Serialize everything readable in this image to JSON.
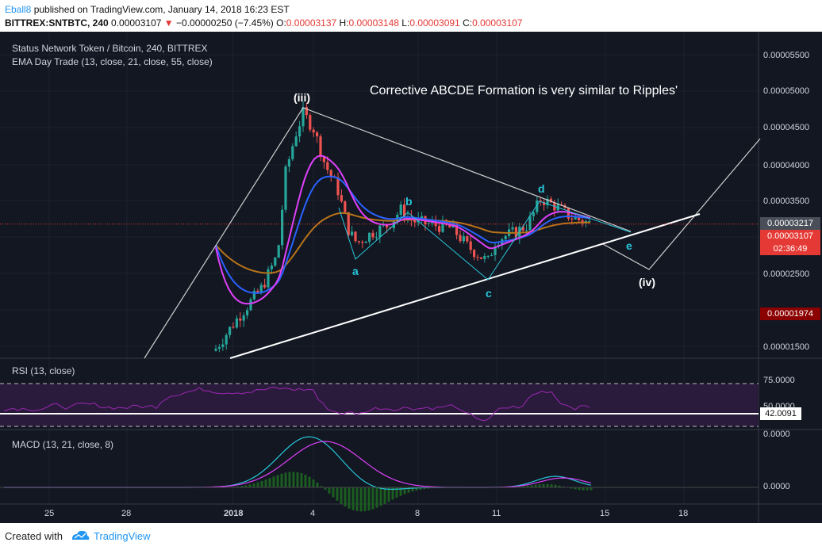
{
  "header": {
    "author": "Eball8",
    "published": "published on TradingView.com, January 14, 2018 16:23 EST",
    "symbol": "BITTREX:SNTBTC, 240",
    "last": "0.00003107",
    "change": "−0.00000250 (−7.45%)",
    "o_label": "O:",
    "o": "0.00003137",
    "h_label": "H:",
    "h": "0.00003148",
    "l_label": "L:",
    "l": "0.00003091",
    "c_label": "C:",
    "c": "0.00003107"
  },
  "chart_title": "Status Network Token / Bitcoin, 240, BITTREX",
  "ema_legend": "EMA Day Trade (13, close, 21, close, 55, close)",
  "annotation": "Corrective ABCDE Formation is very similar to Ripples'",
  "wave_labels": {
    "iii": "(iii)",
    "iv": "(iv)",
    "a": "a",
    "b": "b",
    "c": "c",
    "d": "d",
    "e": "e"
  },
  "price_axis": [
    "0.00005500",
    "0.00005000",
    "0.00004500",
    "0.00004000",
    "0.00003500",
    "0.00002500",
    "0.00001500"
  ],
  "price_tags": {
    "high": "0.00003217",
    "current": "0.00003107",
    "countdown": "02:36:49",
    "low": "0.00001974"
  },
  "rsi": {
    "title": "RSI (13, close)",
    "upper": "75.0000",
    "mid": "50.0000",
    "value": "42.0091"
  },
  "macd": {
    "title": "MACD (13, 21, close, 8)",
    "top": "0.0000",
    "zero": "0.0000"
  },
  "x_axis": [
    "25",
    "28",
    "2018",
    "4",
    "8",
    "11",
    "15",
    "18"
  ],
  "colors": {
    "bg": "#131722",
    "up": "#26a69a",
    "down": "#ef5350",
    "ema13": "#e040fb",
    "ema21": "#2962ff",
    "ema55": "#b8741a",
    "rsi": "#9c27b0",
    "macd": "#26c6da",
    "signal": "#e040fb",
    "hist_up": "#1b5e20",
    "accent": "#2196f3"
  },
  "footer": {
    "created": "Created with",
    "brand": "TradingView",
    "logo": "tradingview-logo"
  },
  "chart_data": {
    "type": "line",
    "title": "Status Network Token / Bitcoin, 240, BITTREX",
    "x": [
      "2017-12-25",
      "2017-12-28",
      "2018-01-01",
      "2018-01-04",
      "2018-01-08",
      "2018-01-11",
      "2018-01-14"
    ],
    "series": [
      {
        "name": "SNTBTC close",
        "values": [
          1.3e-05,
          1.75e-05,
          2.3e-05,
          4.4e-05,
          3.12e-05,
          2.65e-05,
          3.107e-05
        ]
      }
    ],
    "ylim": [
      1.3e-05,
      5.7e-05
    ],
    "annotations": [
      "(iii)",
      "a",
      "b",
      "c",
      "d",
      "e",
      "(iv)"
    ]
  }
}
